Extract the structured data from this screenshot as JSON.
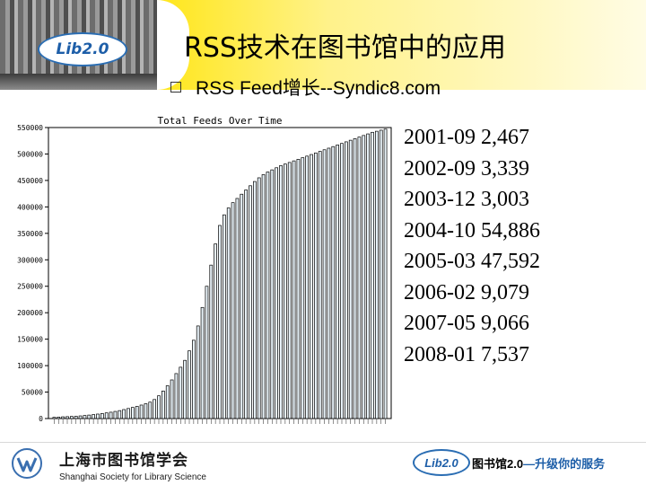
{
  "header": {
    "title": "RSS技术在图书馆中的应用",
    "logo_text": "Lib2.0",
    "subtitle": "RSS Feed增长--Syndic8.com"
  },
  "stats": [
    {
      "period": "2001-09",
      "value": "2,467"
    },
    {
      "period": "2002-09",
      "value": "3,339"
    },
    {
      "period": "2003-12",
      "value": "3,003"
    },
    {
      "period": "2004-10",
      "value": "54,886"
    },
    {
      "period": "2005-03",
      "value": "47,592"
    },
    {
      "period": "2006-02",
      "value": "9,079"
    },
    {
      "period": "2007-05",
      "value": "9,066"
    },
    {
      "period": "2008-01",
      "value": "7,537"
    }
  ],
  "footer": {
    "org_cn": "上海市图书馆学会",
    "org_en": "Shanghai Society for Library Science",
    "lib_logo": "Lib2.0",
    "slogan_a": "图书馆2.0",
    "slogan_b": "—升级你的服务"
  },
  "colors": {
    "bar_fill": "#e8f2f8",
    "bar_stroke": "#000000",
    "accent": "#1d5ea8",
    "banner_yellow": "#ffe61a"
  },
  "chart_data": {
    "type": "bar",
    "title": "Total Feeds Over Time",
    "xlabel": "",
    "ylabel": "",
    "ylim": [
      0,
      550000
    ],
    "yticks": [
      0,
      50000,
      100000,
      150000,
      200000,
      250000,
      300000,
      350000,
      400000,
      450000,
      500000,
      550000
    ],
    "grid": false,
    "legend": "none",
    "values": [
      2400,
      2800,
      3300,
      3600,
      4000,
      4400,
      5000,
      5800,
      6600,
      7500,
      8500,
      9500,
      10700,
      12000,
      13500,
      15000,
      17000,
      19000,
      21000,
      23000,
      25500,
      28000,
      31000,
      36000,
      43000,
      52000,
      62000,
      73000,
      85000,
      97000,
      110000,
      128000,
      148000,
      175000,
      210000,
      250000,
      290000,
      330000,
      365000,
      385000,
      398000,
      408000,
      416000,
      424000,
      432000,
      440000,
      448000,
      455000,
      461000,
      466000,
      470000,
      474000,
      478000,
      481000,
      484000,
      487000,
      490000,
      493000,
      496000,
      499000,
      502000,
      505000,
      508000,
      511000,
      514000,
      517000,
      520000,
      523000,
      526000,
      529000,
      532000,
      535000,
      538000,
      541000,
      543000,
      545000,
      547000
    ]
  }
}
